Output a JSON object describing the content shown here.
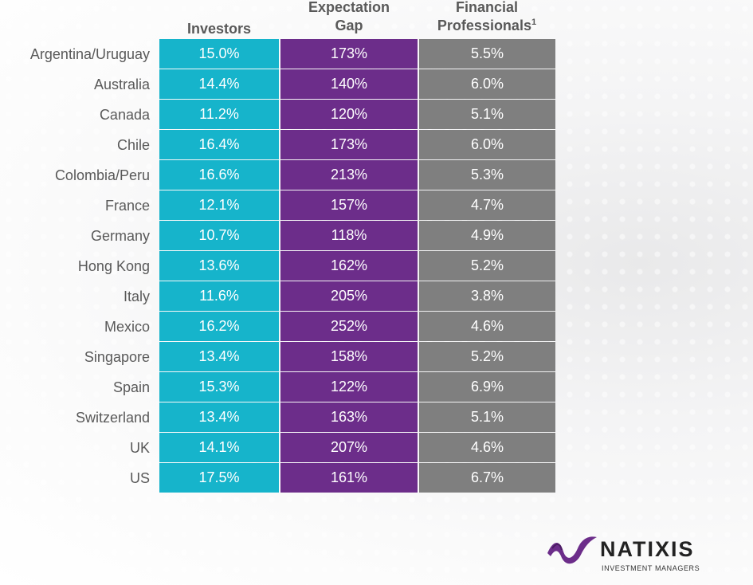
{
  "headers": {
    "investors": "Investors",
    "gap_line1": "Expectation",
    "gap_line2": "Gap",
    "fin_line1": "Financial",
    "fin_line2": "Professionals",
    "fin_sup": "1"
  },
  "rows": [
    {
      "country": "Argentina/Uruguay",
      "investors": "15.0%",
      "gap": "173%",
      "fin": "5.5%"
    },
    {
      "country": "Australia",
      "investors": "14.4%",
      "gap": "140%",
      "fin": "6.0%"
    },
    {
      "country": "Canada",
      "investors": "11.2%",
      "gap": "120%",
      "fin": "5.1%"
    },
    {
      "country": "Chile",
      "investors": "16.4%",
      "gap": "173%",
      "fin": "6.0%"
    },
    {
      "country": "Colombia/Peru",
      "investors": "16.6%",
      "gap": "213%",
      "fin": "5.3%"
    },
    {
      "country": "France",
      "investors": "12.1%",
      "gap": "157%",
      "fin": "4.7%"
    },
    {
      "country": "Germany",
      "investors": "10.7%",
      "gap": "118%",
      "fin": "4.9%"
    },
    {
      "country": "Hong Kong",
      "investors": "13.6%",
      "gap": "162%",
      "fin": "5.2%"
    },
    {
      "country": "Italy",
      "investors": "11.6%",
      "gap": "205%",
      "fin": "3.8%"
    },
    {
      "country": "Mexico",
      "investors": "16.2%",
      "gap": "252%",
      "fin": "4.6%"
    },
    {
      "country": "Singapore",
      "investors": "13.4%",
      "gap": "158%",
      "fin": "5.2%"
    },
    {
      "country": "Spain",
      "investors": "15.3%",
      "gap": "122%",
      "fin": "6.9%"
    },
    {
      "country": "Switzerland",
      "investors": "13.4%",
      "gap": "163%",
      "fin": "5.1%"
    },
    {
      "country": "UK",
      "investors": "14.1%",
      "gap": "207%",
      "fin": "4.6%"
    },
    {
      "country": "US",
      "investors": "17.5%",
      "gap": "161%",
      "fin": "6.7%"
    }
  ],
  "logo": {
    "name": "NATIXIS",
    "tagline": "INVESTMENT MANAGERS"
  },
  "colors": {
    "investors": "#16b4cb",
    "gap": "#6c2d8a",
    "fin": "#7f7f7f",
    "brand_purple": "#6c2d8a"
  }
}
